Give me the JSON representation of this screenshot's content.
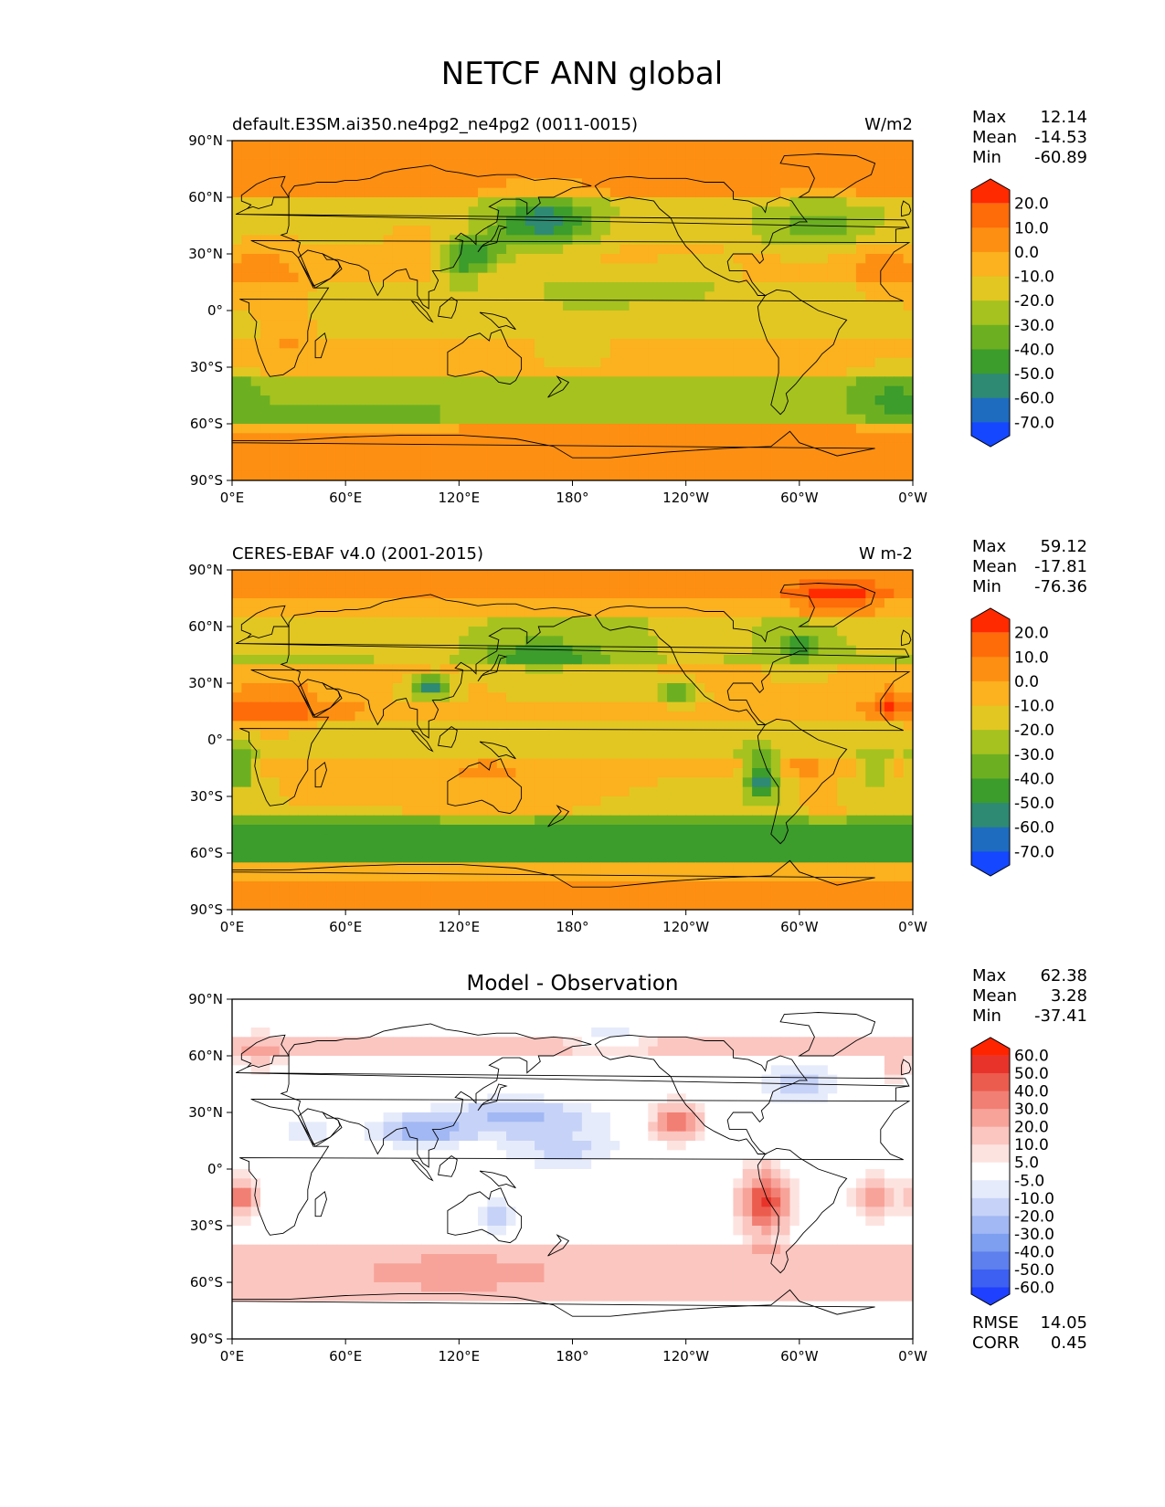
{
  "title": "NETCF ANN global",
  "colors": {
    "levels_abs": [
      "#1447ff",
      "#1e6cc0",
      "#2e8a72",
      "#3c9c2c",
      "#6cb022",
      "#a6c21f",
      "#e2c722",
      "#fcb11f",
      "#fd8f12",
      "#fe6c0a",
      "#ff2a00"
    ],
    "levels_diff": [
      "#1f40ff",
      "#3d60f2",
      "#5d80ee",
      "#7e9ff0",
      "#a2b8f4",
      "#c6d2f7",
      "#e6ebfb",
      "#ffffff",
      "#fde3e0",
      "#fbc6c0",
      "#f7a39a",
      "#f27f74",
      "#ec5c4e",
      "#e8332a",
      "#ff2400"
    ],
    "land_outline": "#000000",
    "ocean_abs_base": "#fcb11f"
  },
  "panels": [
    {
      "id": "model",
      "left_title": "default.E3SM.ai350.ne4pg2_ne4pg2 (0011-0015)",
      "center_title": "",
      "units": "W/m2",
      "stats": [
        {
          "label": "Max",
          "value": "12.14"
        },
        {
          "label": "Mean",
          "value": "-14.53"
        },
        {
          "label": "Min",
          "value": "-60.89"
        }
      ],
      "colorbar": {
        "palette": "abs",
        "ticks": [
          "20.0",
          "10.0",
          "0.0",
          "-10.0",
          "-20.0",
          "-30.0",
          "-40.0",
          "-50.0",
          "-60.0",
          "-70.0"
        ]
      }
    },
    {
      "id": "obs",
      "left_title": "CERES-EBAF v4.0 (2001-2015)",
      "center_title": "",
      "units": "W m-2",
      "stats": [
        {
          "label": "Max",
          "value": "59.12"
        },
        {
          "label": "Mean",
          "value": "-17.81"
        },
        {
          "label": "Min",
          "value": "-76.36"
        }
      ],
      "colorbar": {
        "palette": "abs",
        "ticks": [
          "20.0",
          "10.0",
          "0.0",
          "-10.0",
          "-20.0",
          "-30.0",
          "-40.0",
          "-50.0",
          "-60.0",
          "-70.0"
        ]
      }
    },
    {
      "id": "diff",
      "left_title": "",
      "center_title": "Model - Observation",
      "units": "",
      "stats": [
        {
          "label": "Max",
          "value": "62.38"
        },
        {
          "label": "Mean",
          "value": "3.28"
        },
        {
          "label": "Min",
          "value": "-37.41"
        }
      ],
      "colorbar": {
        "palette": "diff",
        "ticks": [
          "60.0",
          "50.0",
          "40.0",
          "30.0",
          "20.0",
          "10.0",
          "5.0",
          "-5.0",
          "-10.0",
          "-20.0",
          "-30.0",
          "-40.0",
          "-50.0",
          "-60.0"
        ]
      },
      "extra_stats": [
        {
          "label": "RMSE",
          "value": "14.05"
        },
        {
          "label": "CORR",
          "value": "0.45"
        }
      ]
    }
  ],
  "chart_data": [
    {
      "type": "heatmap",
      "title": "default.E3SM.ai350.ne4pg2_ne4pg2 (0011-0015)",
      "units": "W/m2",
      "x_ticks": [
        "0°E",
        "60°E",
        "120°E",
        "180°",
        "120°W",
        "60°W",
        "0°W"
      ],
      "y_ticks": [
        "90°N",
        "60°N",
        "30°N",
        "0°",
        "30°S",
        "60°S",
        "90°S"
      ],
      "xlim": [
        0,
        360
      ],
      "ylim": [
        -90,
        90
      ],
      "levels": [
        -70,
        -60,
        -50,
        -40,
        -30,
        -20,
        -10,
        0,
        10,
        20
      ],
      "max": 12.14,
      "mean": -14.53,
      "min": -60.89,
      "features": [
        {
          "lon": 165,
          "lat": 44,
          "value": -55
        },
        {
          "lon": 125,
          "lat": 26,
          "value": -45
        },
        {
          "lon": 310,
          "lat": 42,
          "value": -32
        },
        {
          "lon": 15,
          "lat": 20,
          "value": 5
        },
        {
          "lon": 340,
          "lat": 20,
          "value": 5
        },
        {
          "lon": 60,
          "lat": -55,
          "value": -28
        },
        {
          "lon": 350,
          "lat": -45,
          "value": -35
        },
        {
          "lon": 180,
          "lat": -80,
          "value": 5
        }
      ]
    },
    {
      "type": "heatmap",
      "title": "CERES-EBAF v4.0 (2001-2015)",
      "units": "W m-2",
      "x_ticks": [
        "0°E",
        "60°E",
        "120°E",
        "180°",
        "120°W",
        "60°W",
        "0°W"
      ],
      "y_ticks": [
        "90°N",
        "60°N",
        "30°N",
        "0°",
        "30°S",
        "60°S",
        "90°S"
      ],
      "xlim": [
        0,
        360
      ],
      "ylim": [
        -90,
        90
      ],
      "levels": [
        -70,
        -60,
        -50,
        -40,
        -30,
        -20,
        -10,
        0,
        10,
        20
      ],
      "max": 59.12,
      "mean": -17.81,
      "min": -76.36,
      "features": [
        {
          "lon": 170,
          "lat": 45,
          "value": -50
        },
        {
          "lon": 105,
          "lat": 28,
          "value": -68
        },
        {
          "lon": 280,
          "lat": -20,
          "value": -65
        },
        {
          "lon": 235,
          "lat": 25,
          "value": -45
        },
        {
          "lon": 5,
          "lat": -15,
          "value": -55
        },
        {
          "lon": 180,
          "lat": -55,
          "value": -45
        },
        {
          "lon": 20,
          "lat": 20,
          "value": 20
        },
        {
          "lon": 320,
          "lat": 75,
          "value": 20
        }
      ]
    },
    {
      "type": "heatmap",
      "title": "Model - Observation",
      "units": "",
      "x_ticks": [
        "0°E",
        "60°E",
        "120°E",
        "180°",
        "120°W",
        "60°W",
        "0°W"
      ],
      "y_ticks": [
        "90°N",
        "60°N",
        "30°N",
        "0°",
        "30°S",
        "60°S",
        "90°S"
      ],
      "xlim": [
        0,
        360
      ],
      "ylim": [
        -90,
        90
      ],
      "levels": [
        -60,
        -50,
        -40,
        -30,
        -20,
        -10,
        -5,
        5,
        10,
        20,
        30,
        40,
        50,
        60
      ],
      "max": 62.38,
      "mean": 3.28,
      "min": -37.41,
      "rmse": 14.05,
      "corr": 0.45,
      "features": [
        {
          "lon": 282,
          "lat": -18,
          "value": 55
        },
        {
          "lon": 235,
          "lat": 25,
          "value": 35
        },
        {
          "lon": 5,
          "lat": -15,
          "value": 40
        },
        {
          "lon": 150,
          "lat": 25,
          "value": -22
        },
        {
          "lon": 100,
          "lat": 20,
          "value": -30
        },
        {
          "lon": 120,
          "lat": -55,
          "value": 25
        }
      ]
    }
  ]
}
